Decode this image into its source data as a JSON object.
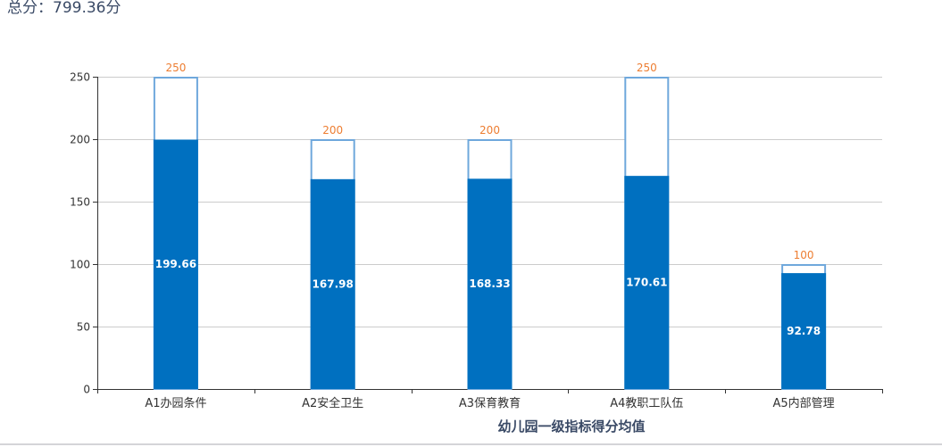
{
  "header": {
    "total_label": "总分：799.36分"
  },
  "chart_data": {
    "type": "bar",
    "title": "幼儿园一级指标得分均值",
    "categories": [
      "A1办园条件",
      "A2安全卫生",
      "A3保育教育",
      "A4教职工队伍",
      "A5内部管理"
    ],
    "series": [
      {
        "values": [
          250,
          200,
          200,
          250,
          100
        ],
        "style": "outline"
      },
      {
        "values": [
          199.66,
          167.98,
          168.33,
          170.61,
          92.78
        ],
        "style": "filled"
      }
    ],
    "max_labels": [
      "250",
      "200",
      "200",
      "250",
      "100"
    ],
    "value_labels": [
      "199.66",
      "167.98",
      "168.33",
      "170.61",
      "92.78"
    ],
    "yticks": [
      "0",
      "50",
      "100",
      "150",
      "200",
      "250"
    ],
    "ylim": [
      0,
      250
    ],
    "grid": true,
    "colors": {
      "fill": "#0070c0",
      "outline": "#6fa8dc",
      "max_label": "#ed7d31",
      "grid": "#cccccc",
      "axis": "#333333",
      "title": "#3a4a66"
    }
  }
}
